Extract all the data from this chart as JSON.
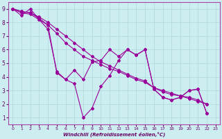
{
  "xlabel": "Windchill (Refroidissement éolien,°C)",
  "background_color": "#cceef0",
  "grid_color": "#aad8dc",
  "line_color": "#990099",
  "xlim": [
    -0.5,
    23.5
  ],
  "ylim": [
    0.5,
    9.5
  ],
  "xticks": [
    0,
    1,
    2,
    3,
    4,
    5,
    6,
    7,
    8,
    9,
    10,
    11,
    12,
    13,
    14,
    15,
    16,
    17,
    18,
    19,
    20,
    21,
    22,
    23
  ],
  "yticks": [
    1,
    2,
    3,
    4,
    5,
    6,
    7,
    8,
    9
  ],
  "line1_x": [
    0,
    1,
    2,
    3,
    4,
    5,
    6,
    7,
    8,
    9,
    10,
    11,
    12,
    13,
    14,
    15,
    16,
    17,
    18,
    19,
    20,
    21,
    22
  ],
  "line1_y": [
    9.0,
    8.8,
    8.7,
    8.3,
    7.8,
    4.3,
    3.8,
    3.5,
    1.0,
    1.7,
    3.3,
    4.1,
    5.2,
    6.0,
    5.6,
    6.0,
    3.1,
    2.5,
    2.3,
    2.5,
    3.0,
    3.1,
    1.3
  ],
  "line2_x": [
    0,
    1,
    2,
    3,
    4,
    5,
    6,
    7,
    8,
    9,
    10,
    11,
    12,
    13,
    14,
    15,
    16,
    17,
    18,
    19,
    20,
    21,
    22
  ],
  "line2_y": [
    9.0,
    8.5,
    9.0,
    8.2,
    7.5,
    4.4,
    3.8,
    4.5,
    3.8,
    5.1,
    5.2,
    6.0,
    5.5,
    6.0,
    5.6,
    6.0,
    3.1,
    2.5,
    2.3,
    2.5,
    3.0,
    3.1,
    1.3
  ],
  "line3_x": [
    0,
    1,
    2,
    3,
    4,
    5,
    6,
    7,
    8,
    9,
    10,
    11,
    12,
    13,
    14,
    15,
    16,
    17,
    18,
    19,
    20,
    21,
    22
  ],
  "line3_y": [
    9.0,
    8.7,
    8.6,
    8.2,
    7.8,
    7.2,
    6.5,
    6.0,
    5.5,
    5.2,
    4.9,
    4.6,
    4.4,
    4.1,
    3.8,
    3.6,
    3.2,
    2.9,
    2.7,
    2.6,
    2.5,
    2.3,
    2.0
  ],
  "line4_x": [
    0,
    1,
    2,
    3,
    4,
    5,
    6,
    7,
    8,
    9,
    10,
    11,
    12,
    13,
    14,
    15,
    16,
    17,
    18,
    19,
    20,
    21,
    22
  ],
  "line4_y": [
    9.0,
    8.8,
    8.7,
    8.4,
    8.0,
    7.5,
    7.0,
    6.5,
    6.0,
    5.5,
    5.1,
    4.8,
    4.5,
    4.2,
    3.9,
    3.7,
    3.2,
    3.0,
    2.8,
    2.6,
    2.4,
    2.2,
    2.0
  ]
}
